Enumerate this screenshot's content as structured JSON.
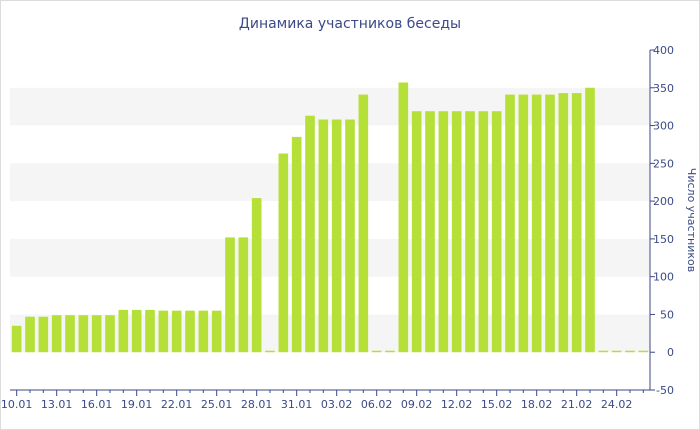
{
  "chart_data": {
    "type": "bar",
    "title": "Динамика участников беседы",
    "xlabel": "",
    "ylabel": "Число участников",
    "ylim": [
      -50,
      400
    ],
    "y_ticks": [
      -50,
      0,
      50,
      100,
      150,
      200,
      250,
      300,
      350,
      400
    ],
    "y_axis_side": "right",
    "grid": "alternating horizontal bands",
    "legend": "none",
    "x_tick_labels": [
      "10.01",
      "13.01",
      "16.01",
      "19.01",
      "22.01",
      "25.01",
      "28.01",
      "31.01",
      "03.02",
      "06.02",
      "09.02",
      "12.02",
      "15.02",
      "18.02",
      "21.02",
      "24.02"
    ],
    "x_tick_every": 3,
    "values": [
      35,
      47,
      47,
      49,
      49,
      49,
      49,
      49,
      56,
      56,
      56,
      55,
      55,
      55,
      55,
      55,
      152,
      152,
      204,
      2,
      263,
      285,
      313,
      308,
      308,
      308,
      341,
      2,
      2,
      357,
      319,
      319,
      319,
      319,
      319,
      319,
      319,
      341,
      341,
      341,
      341,
      343,
      343,
      350,
      2,
      2,
      2,
      2
    ],
    "bar_color": "#b5e037",
    "axis_color": "#3a4a86",
    "band_color": "#f5f5f5"
  }
}
